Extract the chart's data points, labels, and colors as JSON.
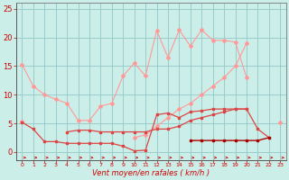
{
  "xlabel": "Vent moyen/en rafales ( km/h )",
  "bg_color": "#cceee8",
  "grid_color": "#99cccc",
  "x_values": [
    0,
    1,
    2,
    3,
    4,
    5,
    6,
    7,
    8,
    9,
    10,
    11,
    12,
    13,
    14,
    15,
    16,
    17,
    18,
    19,
    20,
    21,
    22,
    23
  ],
  "series": [
    {
      "color": "#ff9999",
      "marker": "D",
      "markersize": 2,
      "linewidth": 0.8,
      "y": [
        15.3,
        11.5,
        10.0,
        9.2,
        8.5,
        5.5,
        5.5,
        8.0,
        8.5,
        13.3,
        15.5,
        13.3,
        21.2,
        16.5,
        21.3,
        18.5,
        21.3,
        19.5,
        19.5,
        19.2,
        13.0,
        null,
        null,
        5.2
      ]
    },
    {
      "color": "#ff9999",
      "marker": "D",
      "markersize": 2,
      "linewidth": 0.8,
      "y": [
        5.3,
        null,
        null,
        null,
        null,
        null,
        null,
        null,
        null,
        null,
        2.5,
        3.0,
        4.5,
        6.0,
        7.5,
        8.5,
        10.0,
        11.5,
        13.0,
        15.0,
        19.0,
        null,
        null,
        null
      ]
    },
    {
      "color": "#dd4444",
      "marker": "s",
      "markersize": 2,
      "linewidth": 0.9,
      "y": [
        5.2,
        4.0,
        1.8,
        1.8,
        1.5,
        1.5,
        1.5,
        1.5,
        1.5,
        1.0,
        0.2,
        0.3,
        6.5,
        6.8,
        6.0,
        7.0,
        7.2,
        7.5,
        7.5,
        7.5,
        7.5,
        4.0,
        2.5,
        null
      ]
    },
    {
      "color": "#dd4444",
      "marker": "s",
      "markersize": 2,
      "linewidth": 0.9,
      "y": [
        null,
        null,
        null,
        null,
        3.5,
        3.8,
        3.8,
        3.5,
        3.5,
        3.5,
        3.5,
        3.5,
        4.0,
        4.0,
        4.5,
        5.5,
        6.0,
        6.5,
        7.0,
        7.5,
        7.5,
        null,
        null,
        null
      ]
    },
    {
      "color": "#aa0000",
      "marker": "s",
      "markersize": 2,
      "linewidth": 1.0,
      "y": [
        null,
        null,
        null,
        null,
        null,
        null,
        null,
        null,
        null,
        null,
        null,
        null,
        null,
        null,
        null,
        2.0,
        2.0,
        2.0,
        2.0,
        2.0,
        2.0,
        2.0,
        2.5,
        null
      ]
    }
  ],
  "ylim": [
    -1.5,
    26
  ],
  "xlim": [
    -0.5,
    23.5
  ],
  "yticks": [
    0,
    5,
    10,
    15,
    20,
    25
  ],
  "xticks": [
    0,
    1,
    2,
    3,
    4,
    5,
    6,
    7,
    8,
    9,
    10,
    11,
    12,
    13,
    14,
    15,
    16,
    17,
    18,
    19,
    20,
    21,
    22,
    23
  ],
  "tick_color": "#cc0000",
  "label_color": "#cc0000",
  "xlabel_fontsize": 6,
  "ytick_fontsize": 6,
  "xtick_fontsize": 4.5
}
